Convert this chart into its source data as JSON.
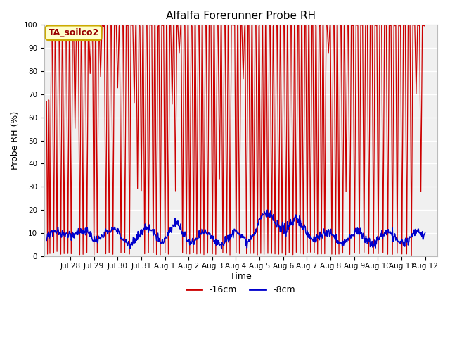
{
  "title": "Alfalfa Forerunner Probe RH",
  "ylabel": "Probe RH (%)",
  "xlabel": "Time",
  "ylim": [
    0,
    100
  ],
  "yticks": [
    0,
    10,
    20,
    30,
    40,
    50,
    60,
    70,
    80,
    90,
    100
  ],
  "fig_bg_color": "#ffffff",
  "plot_bg_color": "#f0f0f0",
  "grid_color": "#ffffff",
  "legend_label": "TA_soilco2",
  "line1_label": "-16cm",
  "line1_color": "#cc0000",
  "line2_label": "-8cm",
  "line2_color": "#0000cc",
  "annotation_box_facecolor": "#ffffcc",
  "annotation_box_edgecolor": "#ccaa00",
  "xtick_labels": [
    "Jul 28",
    "Jul 29",
    "Jul 30",
    "Jul 31",
    "Aug 1",
    "Aug 2",
    "Aug 3",
    "Aug 4",
    "Aug 5",
    "Aug 6",
    "Aug 7",
    "Aug 8",
    "Aug 9",
    "Aug 10",
    "Aug 11",
    "Aug 12"
  ],
  "xtick_positions": [
    1,
    2,
    3,
    4,
    5,
    6,
    7,
    8,
    9,
    10,
    11,
    12,
    13,
    14,
    15,
    16
  ]
}
